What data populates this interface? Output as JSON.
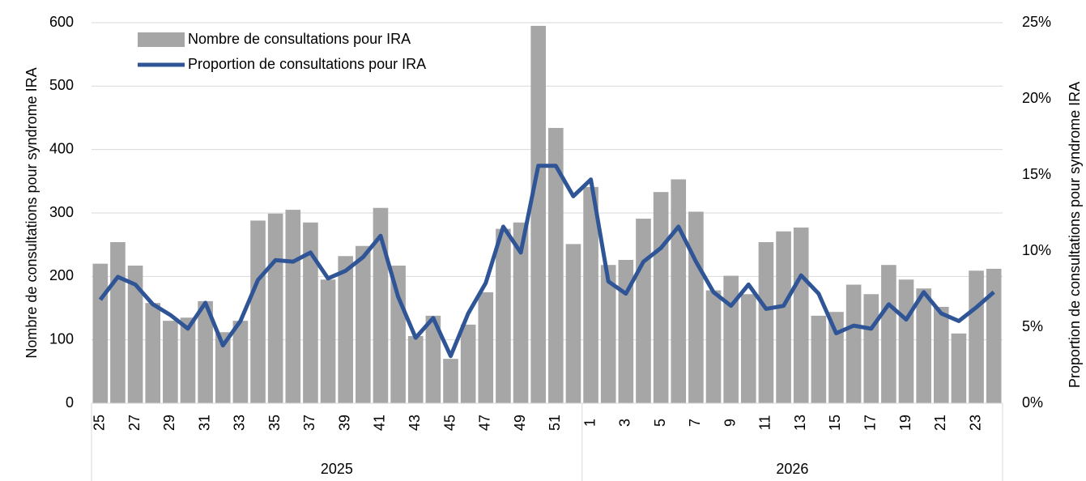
{
  "chart_data": {
    "type": "bar",
    "categories": [
      "25",
      null,
      "27",
      null,
      "29",
      null,
      "31",
      null,
      "33",
      null,
      "35",
      null,
      "37",
      null,
      "39",
      null,
      "41",
      null,
      "43",
      null,
      "45",
      null,
      "47",
      null,
      "49",
      null,
      "51",
      null,
      "1",
      null,
      "3",
      null,
      "5",
      null,
      "7",
      null,
      "9",
      null,
      "11",
      null,
      "13",
      null,
      "15",
      null,
      "17",
      null,
      "19",
      null,
      "21",
      null,
      "23",
      null
    ],
    "groups": [
      {
        "label": "2025",
        "span": 28
      },
      {
        "label": "2026",
        "span": 24
      }
    ],
    "series": [
      {
        "name": "Nombre de consultations pour IRA",
        "type": "bar",
        "color": "#a6a6a6",
        "values": [
          220,
          254,
          217,
          158,
          130,
          135,
          161,
          112,
          130,
          288,
          299,
          305,
          285,
          195,
          232,
          248,
          308,
          217,
          106,
          138,
          70,
          124,
          175,
          275,
          285,
          595,
          434,
          251,
          341,
          218,
          226,
          291,
          333,
          353,
          302,
          178,
          201,
          172,
          254,
          271,
          277,
          138,
          144,
          187,
          172,
          218,
          195,
          181,
          152,
          110,
          209,
          212
        ]
      },
      {
        "name": "Proportion de consultations pour IRA",
        "type": "line",
        "axis": "y2",
        "color": "#2f5597",
        "values": [
          6.8,
          8.3,
          7.8,
          6.5,
          5.8,
          4.9,
          6.6,
          3.8,
          5.4,
          8.1,
          9.4,
          9.3,
          9.9,
          8.2,
          8.7,
          9.6,
          11.0,
          7.0,
          4.3,
          5.6,
          3.1,
          5.9,
          7.9,
          11.6,
          9.9,
          15.6,
          15.6,
          13.6,
          14.7,
          8.0,
          7.2,
          9.3,
          10.2,
          11.6,
          9.3,
          7.3,
          6.4,
          7.8,
          6.2,
          6.4,
          8.4,
          7.2,
          4.6,
          5.1,
          4.9,
          6.5,
          5.5,
          7.3,
          5.9,
          5.4,
          6.3,
          7.3
        ]
      }
    ],
    "y_label": "Nombre de consultations pour syndrome IRA",
    "y2_label": "Proportion de consultations pour syndrome IRA",
    "ylim": [
      0,
      600
    ],
    "yticks": [
      0,
      100,
      200,
      300,
      400,
      500,
      600
    ],
    "y2lim": [
      0,
      25
    ],
    "y2ticks": [
      {
        "value": 0,
        "label": "0%"
      },
      {
        "value": 5,
        "label": "5%"
      },
      {
        "value": 10,
        "label": "10%"
      },
      {
        "value": 15,
        "label": "15%"
      },
      {
        "value": 20,
        "label": "20%"
      },
      {
        "value": 25,
        "label": "25%"
      }
    ],
    "grid": true,
    "legend": "top-left"
  }
}
